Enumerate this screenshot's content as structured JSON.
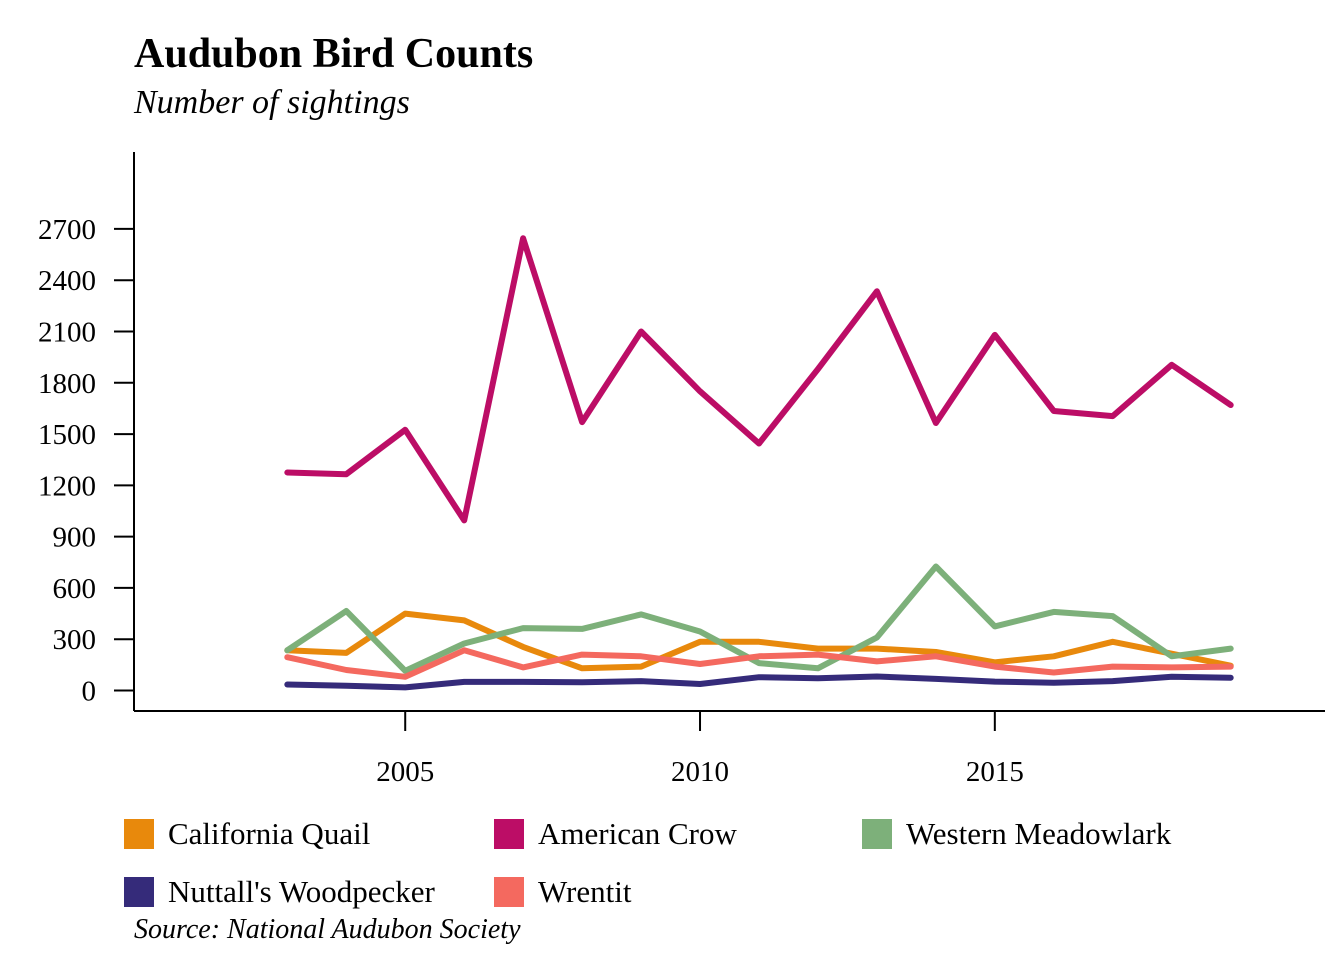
{
  "chart_data": {
    "type": "line",
    "title": "Audubon Bird Counts",
    "subtitle": "Number of sightings",
    "source": "Source: National Audubon Society",
    "xlabel": "",
    "ylabel": "",
    "x": [
      2003,
      2004,
      2005,
      2006,
      2007,
      2008,
      2009,
      2010,
      2011,
      2012,
      2013,
      2014,
      2015,
      2016,
      2017,
      2018,
      2019
    ],
    "xlim": [
      2000.4,
      2020.6
    ],
    "ylim": [
      -120,
      3150
    ],
    "x_ticks": [
      2005,
      2010,
      2015
    ],
    "y_ticks": [
      0,
      300,
      600,
      900,
      1200,
      1500,
      1800,
      2100,
      2400,
      2700
    ],
    "grid": false,
    "legend_position": "bottom",
    "series": [
      {
        "name": "California Quail",
        "color": "#E8890C",
        "values": [
          235,
          220,
          450,
          410,
          255,
          130,
          140,
          285,
          285,
          245,
          245,
          225,
          165,
          200,
          285,
          215,
          145
        ]
      },
      {
        "name": "American Crow",
        "color": "#BC0D66",
        "values": [
          1275,
          1265,
          1525,
          995,
          2645,
          1570,
          2100,
          1750,
          1445,
          1880,
          2335,
          1565,
          2080,
          1635,
          1605,
          1905,
          1670
        ]
      },
      {
        "name": "Western Meadowlark",
        "color": "#7DB07A",
        "values": [
          235,
          465,
          115,
          275,
          365,
          360,
          445,
          345,
          160,
          130,
          310,
          725,
          375,
          460,
          435,
          200,
          245
        ]
      },
      {
        "name": "Nuttall's Woodpecker",
        "color": "#352B7A",
        "values": [
          35,
          28,
          18,
          50,
          50,
          48,
          55,
          38,
          78,
          72,
          82,
          68,
          52,
          45,
          55,
          80,
          75
        ]
      },
      {
        "name": "Wrentit",
        "color": "#F4695F",
        "values": [
          195,
          120,
          80,
          235,
          135,
          210,
          200,
          155,
          200,
          210,
          170,
          200,
          140,
          105,
          140,
          135,
          140
        ]
      }
    ]
  }
}
